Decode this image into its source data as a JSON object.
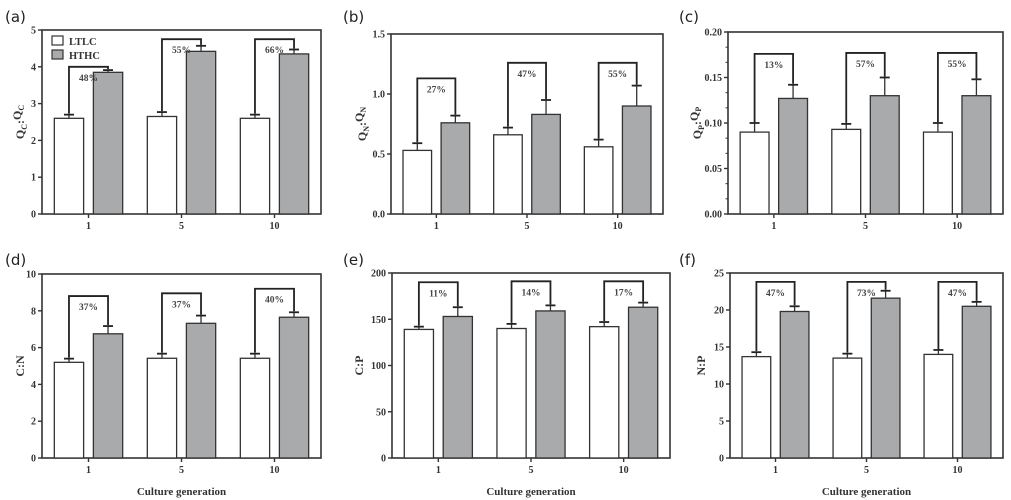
{
  "chart_data": [
    {
      "type": "bar",
      "panel": "(a)",
      "ylabel": "QC:QC",
      "ylabel_main": "Q",
      "ylabel_sub": "C",
      "xlabel": "",
      "categories": [
        "1",
        "5",
        "10"
      ],
      "ylim": [
        0,
        5
      ],
      "yticks": [
        "0",
        "1",
        "2",
        "3",
        "4",
        "5"
      ],
      "ytick_values": [
        0,
        1,
        2,
        3,
        4,
        5
      ],
      "minor_ticks": false,
      "legend": true,
      "legend_position": "top-left",
      "series": [
        {
          "name": "LTLC",
          "values": [
            2.6,
            2.65,
            2.6
          ],
          "errors": [
            0.1,
            0.12,
            0.1
          ],
          "color": "#ffffff"
        },
        {
          "name": "HTHC",
          "values": [
            3.85,
            4.42,
            4.35
          ],
          "errors": [
            0.06,
            0.15,
            0.12
          ],
          "color": "#a9aaac"
        }
      ],
      "brackets": [
        {
          "label": "48%",
          "top": 4.0
        },
        {
          "label": "55%",
          "top": 4.75
        },
        {
          "label": "66%",
          "top": 4.75
        }
      ]
    },
    {
      "type": "bar",
      "panel": "(b)",
      "ylabel": "QN:QN",
      "ylabel_main": "Q",
      "ylabel_sub": "N",
      "xlabel": "",
      "categories": [
        "1",
        "5",
        "10"
      ],
      "ylim": [
        0,
        1.5
      ],
      "yticks": [
        "0.0",
        "0.5",
        "1.0",
        "1.5"
      ],
      "ytick_values": [
        0,
        0.5,
        1.0,
        1.5
      ],
      "minor_ticks": false,
      "legend": false,
      "series": [
        {
          "name": "LTLC",
          "values": [
            0.53,
            0.66,
            0.56
          ],
          "errors": [
            0.06,
            0.06,
            0.06
          ],
          "color": "#ffffff"
        },
        {
          "name": "HTHC",
          "values": [
            0.76,
            0.83,
            0.9
          ],
          "errors": [
            0.06,
            0.12,
            0.17
          ],
          "color": "#a9aaac"
        }
      ],
      "brackets": [
        {
          "label": "27%",
          "top": 1.13
        },
        {
          "label": "47%",
          "top": 1.26
        },
        {
          "label": "55%",
          "top": 1.26
        }
      ]
    },
    {
      "type": "bar",
      "panel": "(c)",
      "ylabel": "QP:QP",
      "ylabel_main": "Q",
      "ylabel_sub": "P",
      "xlabel": "",
      "categories": [
        "1",
        "5",
        "10"
      ],
      "ylim": [
        0,
        0.2
      ],
      "yticks": [
        "0.00",
        "0.05",
        "0.10",
        "0.15",
        "0.20"
      ],
      "ytick_values": [
        0,
        0.05,
        0.1,
        0.15,
        0.2
      ],
      "minor_ticks": true,
      "legend": false,
      "series": [
        {
          "name": "LTLC",
          "values": [
            0.09,
            0.093,
            0.09
          ],
          "errors": [
            0.01,
            0.006,
            0.01
          ],
          "color": "#ffffff"
        },
        {
          "name": "HTHC",
          "values": [
            0.127,
            0.13,
            0.13
          ],
          "errors": [
            0.015,
            0.02,
            0.018
          ],
          "color": "#a9aaac"
        }
      ],
      "brackets": [
        {
          "label": "13%",
          "top": 0.176
        },
        {
          "label": "57%",
          "top": 0.177
        },
        {
          "label": "55%",
          "top": 0.177
        }
      ]
    },
    {
      "type": "bar",
      "panel": "(d)",
      "ylabel": "C:N",
      "xlabel": "Culture generation",
      "categories": [
        "1",
        "5",
        "10"
      ],
      "ylim": [
        0,
        10
      ],
      "yticks": [
        "0",
        "2",
        "4",
        "6",
        "8",
        "10"
      ],
      "ytick_values": [
        0,
        2,
        4,
        6,
        8,
        10
      ],
      "minor_ticks": false,
      "legend": false,
      "series": [
        {
          "name": "LTLC",
          "values": [
            5.2,
            5.42,
            5.42
          ],
          "errors": [
            0.2,
            0.25,
            0.25
          ],
          "color": "#ffffff"
        },
        {
          "name": "HTHC",
          "values": [
            6.75,
            7.32,
            7.65
          ],
          "errors": [
            0.42,
            0.42,
            0.27
          ],
          "color": "#a9aaac"
        }
      ],
      "brackets": [
        {
          "label": "37%",
          "top": 8.8
        },
        {
          "label": "37%",
          "top": 8.95
        },
        {
          "label": "40%",
          "top": 9.2
        }
      ]
    },
    {
      "type": "bar",
      "panel": "(e)",
      "ylabel": "C:P",
      "xlabel": "Culture generation",
      "categories": [
        "1",
        "5",
        "10"
      ],
      "ylim": [
        0,
        200
      ],
      "yticks": [
        "0",
        "50",
        "100",
        "150",
        "200"
      ],
      "ytick_values": [
        0,
        50,
        100,
        150,
        200
      ],
      "minor_ticks": false,
      "legend": false,
      "series": [
        {
          "name": "LTLC",
          "values": [
            139,
            140,
            142
          ],
          "errors": [
            3,
            5,
            5
          ],
          "color": "#ffffff"
        },
        {
          "name": "HTHC",
          "values": [
            153,
            159,
            163
          ],
          "errors": [
            10,
            6,
            5
          ],
          "color": "#a9aaac"
        }
      ],
      "brackets": [
        {
          "label": "11%",
          "top": 190
        },
        {
          "label": "14%",
          "top": 191
        },
        {
          "label": "17%",
          "top": 191
        }
      ]
    },
    {
      "type": "bar",
      "panel": "(f)",
      "ylabel": "N:P",
      "xlabel": "Culture generation",
      "categories": [
        "1",
        "5",
        "10"
      ],
      "ylim": [
        0,
        25
      ],
      "yticks": [
        "0",
        "5",
        "10",
        "15",
        "20",
        "25"
      ],
      "ytick_values": [
        0,
        5,
        10,
        15,
        20,
        25
      ],
      "minor_ticks": false,
      "legend": false,
      "series": [
        {
          "name": "LTLC",
          "values": [
            13.7,
            13.5,
            14.0
          ],
          "errors": [
            0.6,
            0.6,
            0.6
          ],
          "color": "#ffffff"
        },
        {
          "name": "HTHC",
          "values": [
            19.8,
            21.6,
            20.5
          ],
          "errors": [
            0.7,
            1.0,
            0.6
          ],
          "color": "#a9aaac"
        }
      ],
      "brackets": [
        {
          "label": "47%",
          "top": 23.8
        },
        {
          "label": "73%",
          "top": 23.8
        },
        {
          "label": "47%",
          "top": 23.8
        }
      ]
    }
  ]
}
